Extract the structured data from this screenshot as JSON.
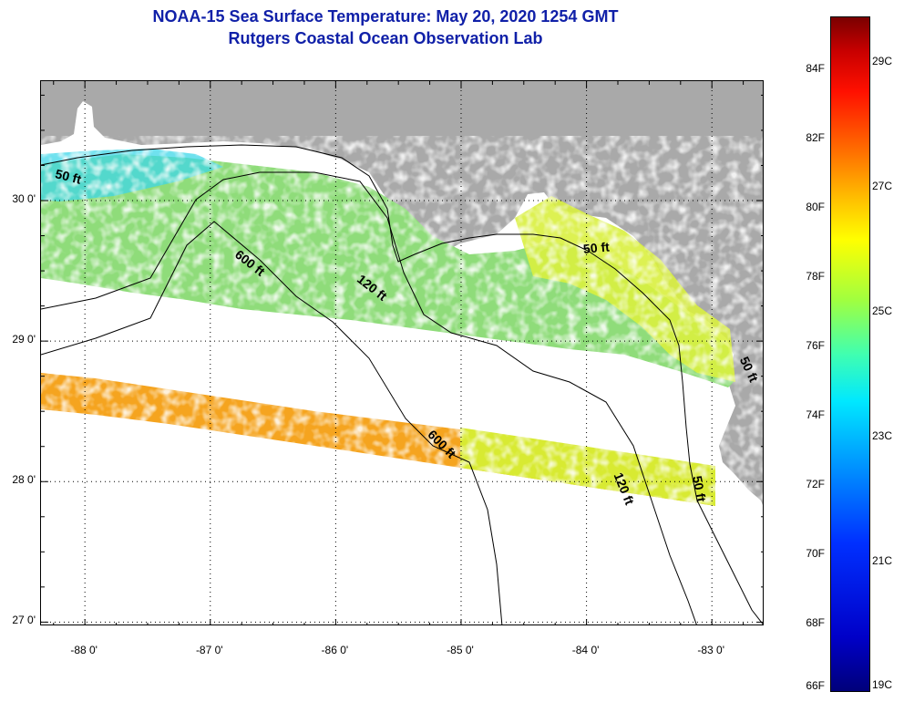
{
  "title": {
    "line1": "NOAA-15 Sea Surface Temperature:  May 20, 2020 1254 GMT",
    "line2": "Rutgers Coastal Ocean Observation Lab"
  },
  "map": {
    "lon_range": [
      -88.35,
      -82.58
    ],
    "lat_range": [
      26.97,
      30.85
    ],
    "lat_ticks": [
      {
        "value": 30.0,
        "label": "30 0'"
      },
      {
        "value": 29.0,
        "label": "29 0'"
      },
      {
        "value": 28.0,
        "label": "28 0'"
      },
      {
        "value": 27.0,
        "label": "27 0'"
      }
    ],
    "lon_ticks": [
      {
        "value": -88.0,
        "label": "-88 0'"
      },
      {
        "value": -87.0,
        "label": "-87 0'"
      },
      {
        "value": -86.0,
        "label": "-86 0'"
      },
      {
        "value": -85.0,
        "label": "-85 0'"
      },
      {
        "value": -84.0,
        "label": "-84 0'"
      },
      {
        "value": -83.0,
        "label": "-83 0'"
      }
    ],
    "grid": "dotted",
    "land_color": "#a9a9a9",
    "contours": [
      {
        "label": "50 ft",
        "lon": -88.23,
        "lat": 30.18,
        "angle": 14
      },
      {
        "label": "600 ft",
        "lon": -86.78,
        "lat": 29.62,
        "angle": 38
      },
      {
        "label": "120 ft",
        "lon": -85.81,
        "lat": 29.44,
        "angle": 38
      },
      {
        "label": "50 ft",
        "lon": -84.02,
        "lat": 29.64,
        "angle": -5
      },
      {
        "label": "600 ft",
        "lon": -85.24,
        "lat": 28.34,
        "angle": 45
      },
      {
        "label": "120 ft",
        "lon": -83.74,
        "lat": 28.05,
        "angle": 68
      },
      {
        "label": "50 ft",
        "lon": -83.11,
        "lat": 28.03,
        "angle": 80
      },
      {
        "label": "50 ft",
        "lon": -82.74,
        "lat": 28.87,
        "angle": 65
      }
    ]
  },
  "colorbar": {
    "fahrenheit_labels": [
      "84F",
      "82F",
      "80F",
      "78F",
      "76F",
      "74F",
      "72F",
      "70F",
      "68F",
      "66F"
    ],
    "celsius_labels": [
      "29C",
      "27C",
      "25C",
      "23C",
      "21C",
      "19C"
    ]
  }
}
